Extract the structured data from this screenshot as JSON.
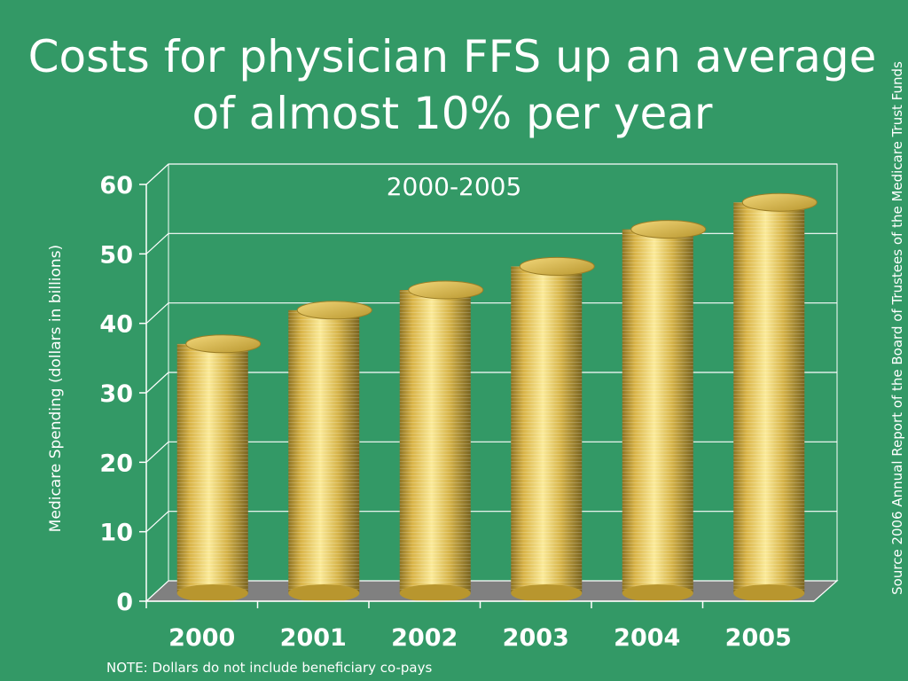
{
  "slide": {
    "title": "Costs for physician FFS up an average of almost 10% per year",
    "source": "Source 2006 Annual Report of the Board of Trustees of the Medicare Trust Funds",
    "note": "NOTE:  Dollars do not include beneficiary co-pays"
  },
  "chart_data": {
    "type": "bar",
    "title": "",
    "subtitle": "2000-2005",
    "xlabel": "",
    "ylabel": "Medicare Spending (dollars in billions)",
    "categories": [
      "2000",
      "2001",
      "2002",
      "2003",
      "2004",
      "2005"
    ],
    "values": [
      37,
      42,
      45,
      48.5,
      54,
      58
    ],
    "ylim": [
      0,
      60
    ],
    "yticks": [
      0,
      10,
      20,
      30,
      40,
      50,
      60
    ],
    "grid": true,
    "legend": "none",
    "colors": {
      "bar": "#E8C85A",
      "floor": "#808080",
      "grid": "#ffffff"
    }
  }
}
